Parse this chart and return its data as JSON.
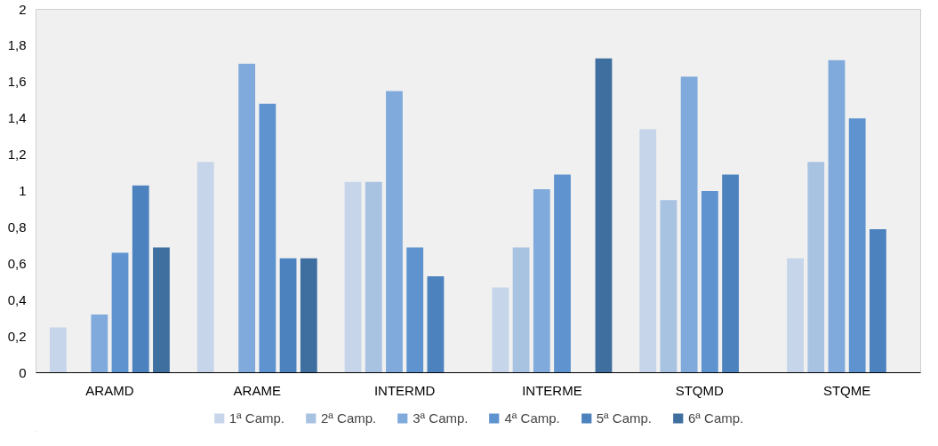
{
  "chart_data": {
    "type": "bar",
    "categories": [
      "ARAMD",
      "ARAME",
      "INTERMD",
      "INTERME",
      "STQMD",
      "STQME"
    ],
    "series": [
      {
        "name": "1ª Camp.",
        "color": "#c6d5ea",
        "values": [
          0.25,
          1.16,
          1.05,
          0.47,
          1.34,
          0.63
        ]
      },
      {
        "name": "2ª Camp.",
        "color": "#a8c2e2",
        "values": [
          null,
          null,
          1.05,
          0.69,
          0.95,
          1.16
        ]
      },
      {
        "name": "3ª Camp.",
        "color": "#80aadb",
        "values": [
          0.32,
          1.7,
          1.55,
          1.01,
          1.63,
          1.72
        ]
      },
      {
        "name": "4ª Camp.",
        "color": "#5e93d0",
        "values": [
          0.66,
          1.48,
          0.69,
          1.09,
          1.0,
          1.4
        ]
      },
      {
        "name": "5ª Camp.",
        "color": "#4c82bd",
        "values": [
          1.03,
          0.63,
          0.53,
          null,
          1.09,
          0.79
        ]
      },
      {
        "name": "6ª Camp.",
        "color": "#3f6f9f",
        "values": [
          0.69,
          0.63,
          null,
          1.73,
          null,
          null
        ]
      }
    ],
    "ylim": [
      0,
      2
    ],
    "yticks": [
      0,
      {
        "value": 0.2,
        "label": "0,2"
      },
      {
        "value": 0.4,
        "label": "0,4"
      },
      {
        "value": 0.6,
        "label": "0,6"
      },
      {
        "value": 0.8,
        "label": "0,8"
      },
      1,
      {
        "value": 1.2,
        "label": "1,2"
      },
      {
        "value": 1.4,
        "label": "1,4"
      },
      {
        "value": 1.6,
        "label": "1,6"
      },
      {
        "value": 1.8,
        "label": "1,8"
      },
      2
    ],
    "grid": false,
    "legend": "bottom"
  }
}
